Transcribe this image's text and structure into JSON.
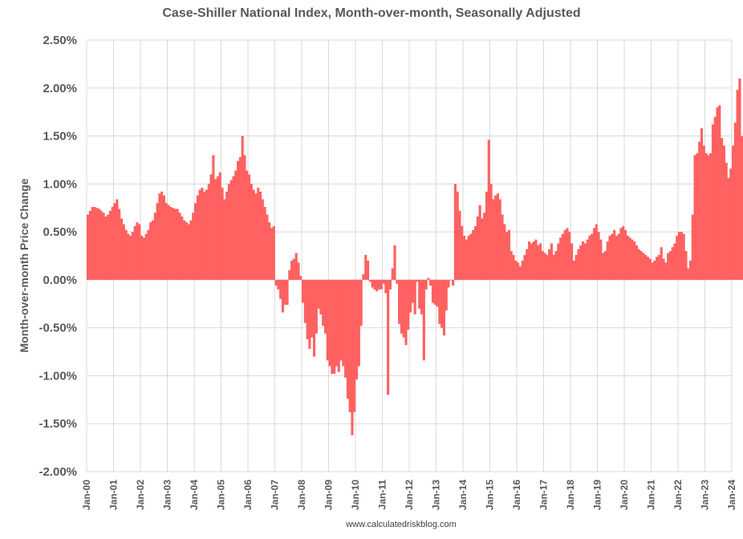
{
  "chart_data": {
    "type": "bar",
    "title": "Case-Shiller National Index, Month-over-month, Seasonally Adjusted",
    "ylabel": "Month-over-month Price Change",
    "source": "www.calculatedriskblog.com",
    "ylim": [
      -2.0,
      2.5
    ],
    "yticks": [
      "2.50%",
      "2.00%",
      "1.50%",
      "1.00%",
      "0.50%",
      "0.00%",
      "-0.50%",
      "-1.00%",
      "-1.50%",
      "-2.00%"
    ],
    "ytick_values": [
      2.5,
      2.0,
      1.5,
      1.0,
      0.5,
      0.0,
      -0.5,
      -1.0,
      -1.5,
      -2.0
    ],
    "xticks": [
      "Jan-00",
      "Jan-01",
      "Jan-02",
      "Jan-03",
      "Jan-04",
      "Jan-05",
      "Jan-06",
      "Jan-07",
      "Jan-08",
      "Jan-09",
      "Jan-10",
      "Jan-11",
      "Jan-12",
      "Jan-13",
      "Jan-14",
      "Jan-15",
      "Jan-16",
      "Jan-17",
      "Jan-18",
      "Jan-19",
      "Jan-20",
      "Jan-21",
      "Jan-22",
      "Jan-23",
      "Jan-24"
    ],
    "bar_color": "#FF6161",
    "grid": true,
    "x_start": "Jan-00",
    "frequency": "monthly",
    "values": [
      0.68,
      0.72,
      0.76,
      0.76,
      0.75,
      0.74,
      0.72,
      0.7,
      0.66,
      0.68,
      0.72,
      0.76,
      0.8,
      0.84,
      0.74,
      0.64,
      0.58,
      0.52,
      0.48,
      0.46,
      0.5,
      0.56,
      0.6,
      0.58,
      0.46,
      0.44,
      0.48,
      0.52,
      0.6,
      0.62,
      0.7,
      0.8,
      0.9,
      0.92,
      0.88,
      0.8,
      0.78,
      0.76,
      0.75,
      0.74,
      0.74,
      0.7,
      0.66,
      0.62,
      0.6,
      0.58,
      0.62,
      0.7,
      0.8,
      0.88,
      0.94,
      0.96,
      0.92,
      0.94,
      1.0,
      1.1,
      1.3,
      1.05,
      1.08,
      1.12,
      0.96,
      0.84,
      0.92,
      1.0,
      1.04,
      1.08,
      1.14,
      1.24,
      1.28,
      1.5,
      1.3,
      1.14,
      1.1,
      1.0,
      0.94,
      0.9,
      0.96,
      0.92,
      0.84,
      0.76,
      0.68,
      0.6,
      0.54,
      0.56,
      -0.06,
      -0.1,
      -0.2,
      -0.34,
      -0.26,
      -0.26,
      0.1,
      0.2,
      0.22,
      0.28,
      0.18,
      0.04,
      -0.24,
      -0.45,
      -0.62,
      -0.72,
      -0.6,
      -0.8,
      -0.56,
      -0.3,
      -0.36,
      -0.48,
      -0.56,
      -0.84,
      -0.9,
      -0.98,
      -0.98,
      -0.9,
      -0.96,
      -0.84,
      -0.9,
      -1.02,
      -1.24,
      -1.38,
      -1.62,
      -1.38,
      -1.04,
      -0.9,
      -0.48,
      0.06,
      0.26,
      0.2,
      -0.02,
      -0.08,
      -0.1,
      -0.12,
      -0.1,
      -0.1,
      -0.04,
      -0.14,
      -1.2,
      -0.1,
      0.12,
      0.36,
      -0.04,
      -0.46,
      -0.56,
      -0.6,
      -0.68,
      -0.52,
      -0.34,
      -0.24,
      -0.36,
      -0.02,
      -0.3,
      -0.36,
      -0.84,
      -0.1,
      0.02,
      -0.06,
      -0.24,
      -0.26,
      -0.28,
      -0.46,
      -0.5,
      -0.58,
      -0.32,
      -0.08,
      0.0,
      -0.06,
      1.0,
      0.92,
      0.72,
      0.56,
      0.46,
      0.42,
      0.46,
      0.48,
      0.52,
      0.56,
      0.66,
      0.78,
      0.64,
      0.7,
      0.92,
      1.46,
      1.0,
      0.84,
      0.88,
      0.9,
      0.84,
      0.68,
      0.58,
      0.5,
      0.52,
      0.3,
      0.26,
      0.2,
      0.18,
      0.14,
      0.2,
      0.26,
      0.32,
      0.4,
      0.38,
      0.4,
      0.42,
      0.36,
      0.38,
      0.3,
      0.28,
      0.26,
      0.32,
      0.38,
      0.26,
      0.3,
      0.38,
      0.44,
      0.48,
      0.52,
      0.54,
      0.5,
      0.38,
      0.2,
      0.26,
      0.32,
      0.36,
      0.4,
      0.38,
      0.42,
      0.46,
      0.48,
      0.54,
      0.58,
      0.5,
      0.42,
      0.28,
      0.3,
      0.4,
      0.46,
      0.48,
      0.52,
      0.46,
      0.48,
      0.54,
      0.56,
      0.52,
      0.46,
      0.44,
      0.42,
      0.4,
      0.36,
      0.32,
      0.3,
      0.28,
      0.26,
      0.24,
      0.22,
      0.18,
      0.2,
      0.24,
      0.26,
      0.34,
      0.22,
      0.18,
      0.28,
      0.3,
      0.34,
      0.38,
      0.46,
      0.5,
      0.5,
      0.48,
      0.3,
      0.12,
      0.2,
      0.68,
      1.3,
      1.32,
      1.44,
      1.58,
      1.4,
      1.32,
      1.3,
      1.32,
      1.62,
      1.7,
      1.8,
      1.82,
      1.48,
      1.4,
      1.22,
      1.06,
      1.16,
      1.4,
      1.64,
      1.98,
      2.1,
      1.5
    ]
  }
}
